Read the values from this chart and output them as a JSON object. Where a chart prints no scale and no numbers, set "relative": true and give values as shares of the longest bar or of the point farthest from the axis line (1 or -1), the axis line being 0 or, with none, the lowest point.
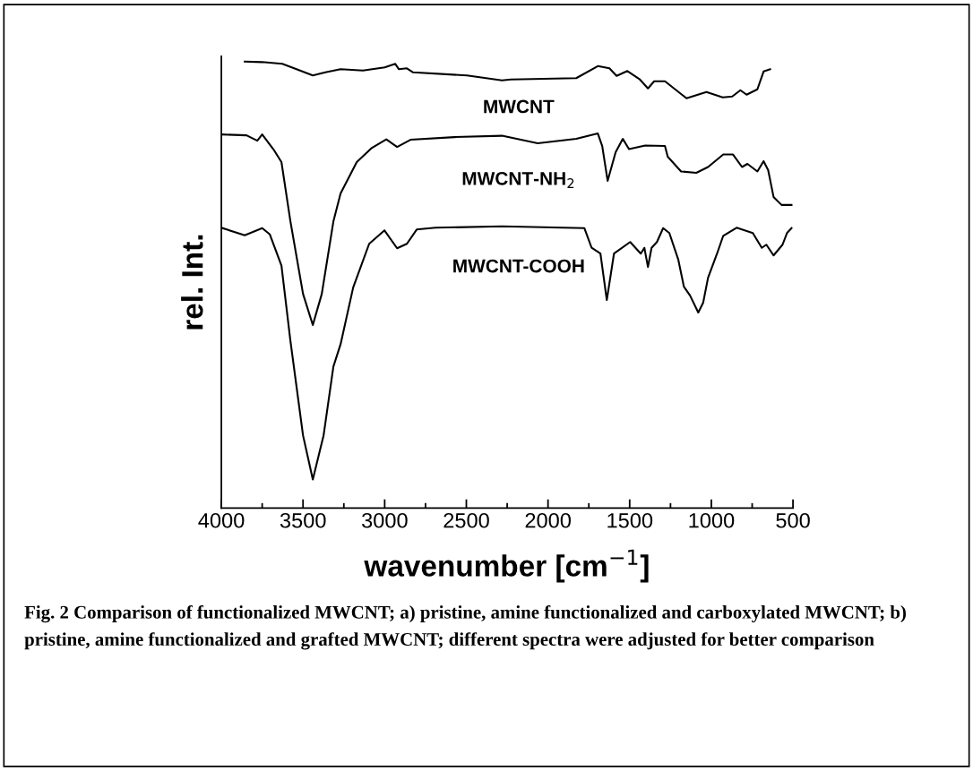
{
  "chart_data": {
    "type": "line",
    "relative": true,
    "xlabel": "wavenumber [cm$^{−1}$]",
    "ylabel": "rel. Int.",
    "xlim": [
      4000,
      500
    ],
    "xticks": [
      4000,
      3500,
      3000,
      2500,
      2000,
      1500,
      1000,
      500
    ],
    "tick_labels": "x",
    "grid": false,
    "legend": false,
    "series": [
      {
        "name": "MWCNT",
        "color": "#000000",
        "x": [
          3857,
          3750,
          3627,
          3540,
          3440,
          3363,
          3270,
          3133,
          3000,
          2935,
          2913,
          2864,
          2826,
          2496,
          2282,
          2227,
          1827,
          1695,
          1624,
          1580,
          1514,
          1440,
          1388,
          1350,
          1284,
          1152,
          1030,
          930,
          872,
          822,
          784,
          718,
          680,
          640
        ],
        "values": [
          1.0,
          0.999,
          0.995,
          0.983,
          0.969,
          0.976,
          0.983,
          0.98,
          0.987,
          0.995,
          0.983,
          0.985,
          0.976,
          0.969,
          0.958,
          0.96,
          0.963,
          0.99,
          0.985,
          0.968,
          0.979,
          0.961,
          0.94,
          0.956,
          0.956,
          0.918,
          0.932,
          0.92,
          0.922,
          0.936,
          0.926,
          0.938,
          0.978,
          0.983
        ]
      },
      {
        "name": "MWCNT-NH$_{2}$",
        "color": "#000000",
        "x": [
          4000,
          3846,
          3780,
          3750,
          3680,
          3632,
          3577,
          3500,
          3440,
          3385,
          3314,
          3270,
          3171,
          3078,
          2990,
          2924,
          2842,
          2573,
          2282,
          2063,
          1827,
          1695,
          1668,
          1635,
          1586,
          1542,
          1504,
          1405,
          1284,
          1267,
          1185,
          1092,
          1020,
          927,
          867,
          812,
          779,
          718,
          680,
          652,
          619,
          570,
          509
        ],
        "values": [
          0.837,
          0.835,
          0.823,
          0.837,
          0.803,
          0.775,
          0.642,
          0.48,
          0.41,
          0.48,
          0.642,
          0.705,
          0.775,
          0.807,
          0.826,
          0.809,
          0.825,
          0.831,
          0.834,
          0.817,
          0.827,
          0.839,
          0.811,
          0.733,
          0.797,
          0.827,
          0.804,
          0.812,
          0.811,
          0.787,
          0.754,
          0.751,
          0.764,
          0.792,
          0.792,
          0.764,
          0.771,
          0.754,
          0.777,
          0.757,
          0.697,
          0.679,
          0.679
        ]
      },
      {
        "name": "MWCNT-COOH",
        "color": "#000000",
        "x": [
          4000,
          3857,
          3750,
          3703,
          3632,
          3577,
          3500,
          3440,
          3374,
          3314,
          3270,
          3193,
          3095,
          3001,
          2924,
          2864,
          2804,
          2688,
          2282,
          1777,
          1733,
          1679,
          1640,
          1596,
          1497,
          1432,
          1410,
          1388,
          1366,
          1333,
          1295,
          1257,
          1202,
          1168,
          1130,
          1080,
          1050,
          1020,
          965,
          927,
          845,
          746,
          691,
          663,
          619,
          564,
          537,
          509
        ],
        "values": [
          0.628,
          0.611,
          0.627,
          0.613,
          0.543,
          0.374,
          0.163,
          0.064,
          0.163,
          0.317,
          0.367,
          0.494,
          0.592,
          0.622,
          0.582,
          0.592,
          0.624,
          0.628,
          0.631,
          0.627,
          0.583,
          0.57,
          0.466,
          0.57,
          0.596,
          0.57,
          0.583,
          0.54,
          0.583,
          0.596,
          0.627,
          0.616,
          0.556,
          0.496,
          0.476,
          0.438,
          0.46,
          0.516,
          0.57,
          0.61,
          0.628,
          0.616,
          0.583,
          0.59,
          0.566,
          0.59,
          0.616,
          0.627
        ]
      }
    ],
    "annotations": [
      "Fig. 2 Comparison of functionalized MWCNT; a) pristine, amine functionalized and carboxylated MWCNT; b) pristine, amine functionalized and grafted MWCNT; different spectra were adjusted for better comparison"
    ]
  }
}
